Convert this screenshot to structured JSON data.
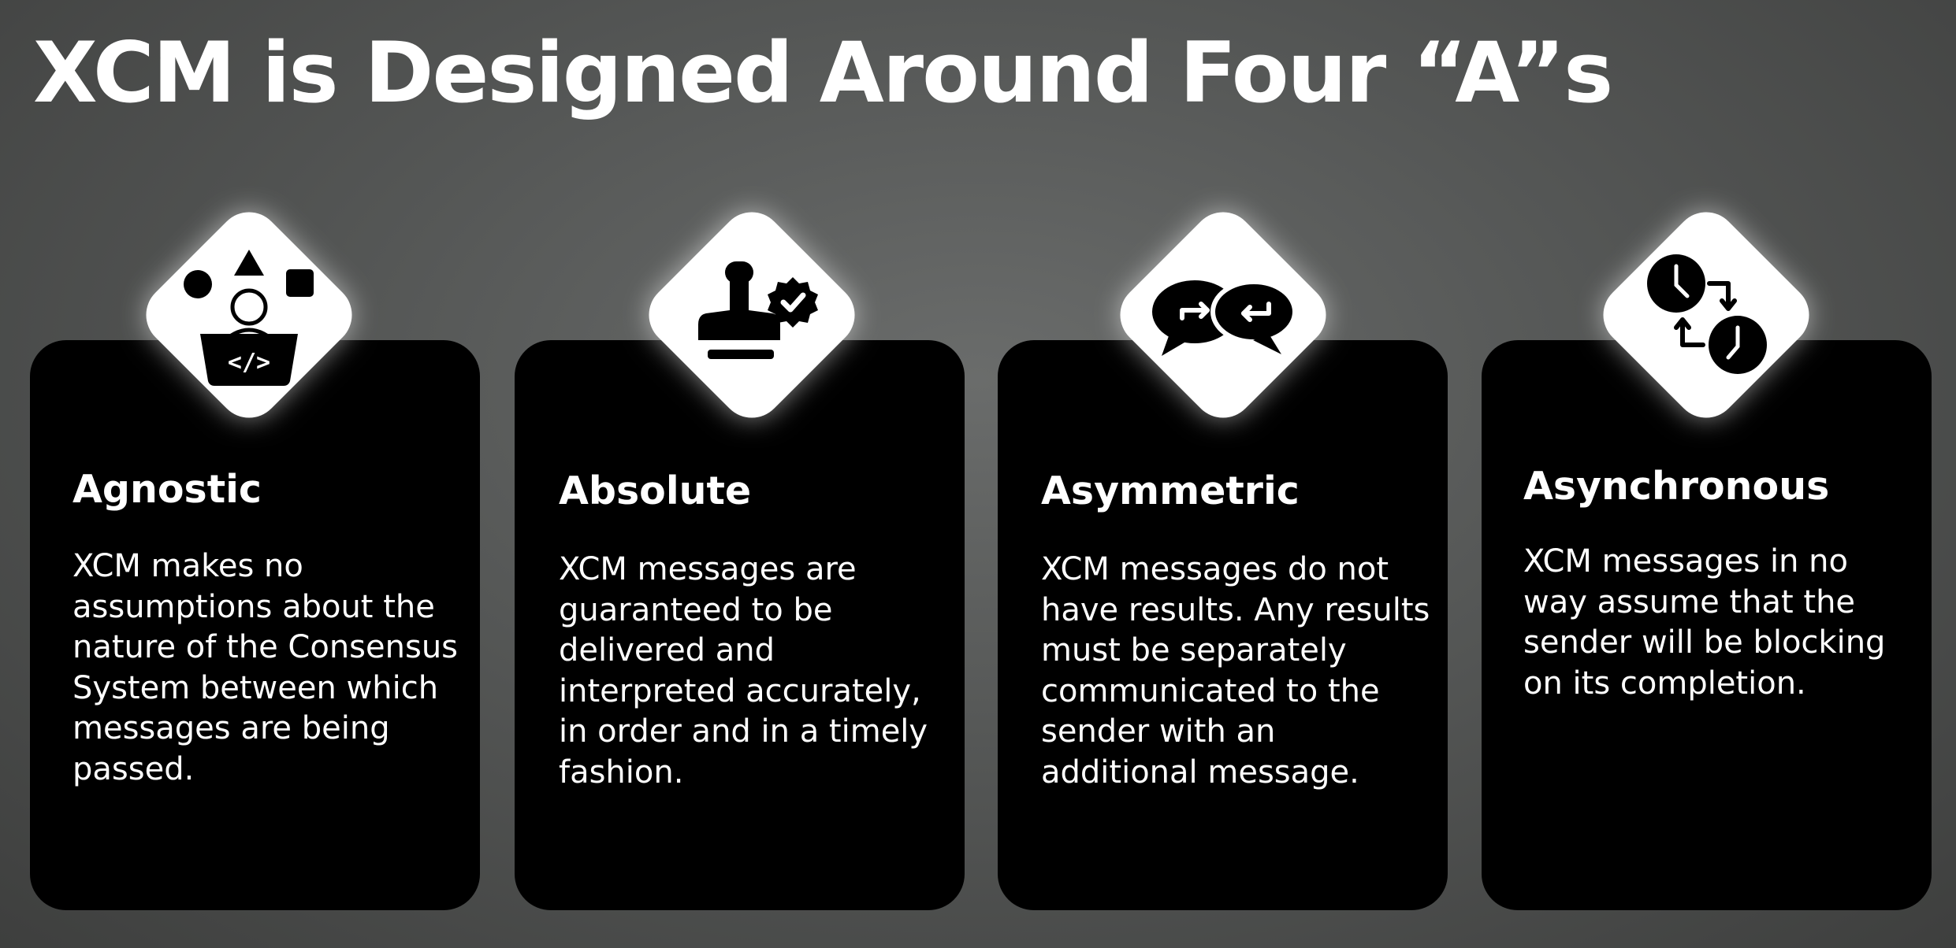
{
  "title": "XCM is Designed Around Four “A”s",
  "cards": [
    {
      "heading": "Agnostic",
      "body": "XCM makes no assumptions about the nature of the Consensus System between which messages are being passed.",
      "icon": "developer-shapes-icon"
    },
    {
      "heading": "Absolute",
      "body": "XCM messages are guaranteed to be delivered and interpreted accurately, in order and in a timely fashion.",
      "icon": "stamp-verified-icon"
    },
    {
      "heading": "Asymmetric",
      "body": "XCM messages do not have results. Any results must be separately communicated to the sender with an additional message.",
      "icon": "speech-bubbles-exchange-icon"
    },
    {
      "heading": "Asynchronous",
      "body": "XCM messages in no way assume that the sender will be blocking on its completion.",
      "icon": "clocks-exchange-icon"
    }
  ],
  "colors": {
    "background": "#555756",
    "card": "#000000",
    "diamond": "#ffffff",
    "text": "#ffffff"
  }
}
